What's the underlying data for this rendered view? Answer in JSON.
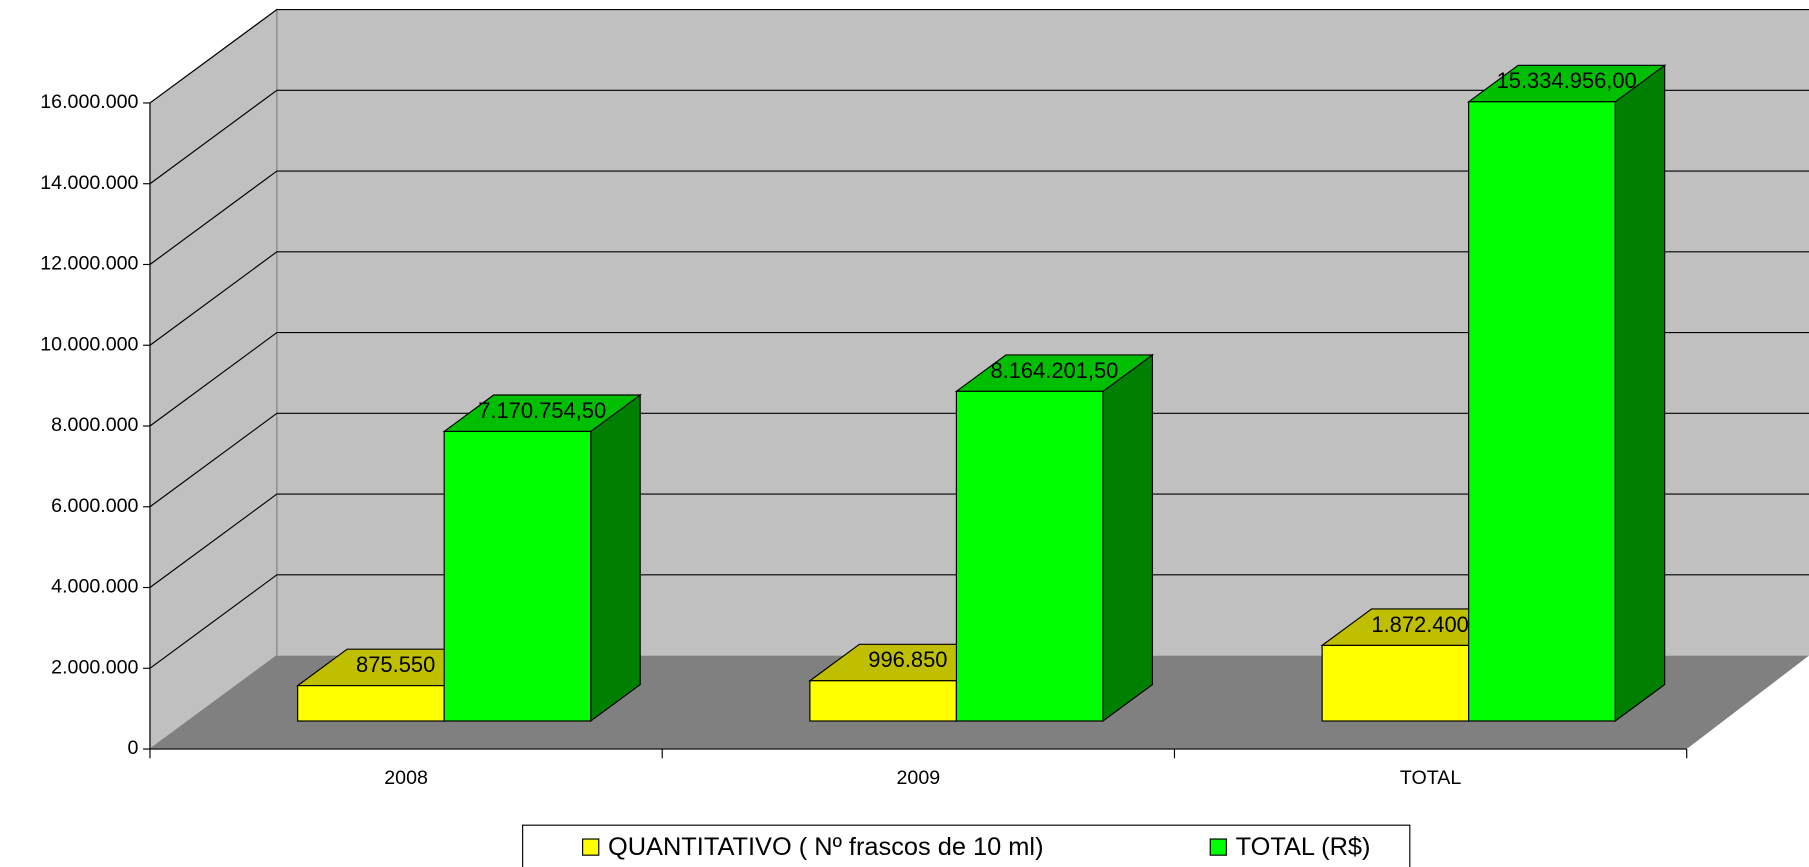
{
  "chart_data": {
    "type": "bar3d",
    "categories": [
      "2008",
      "2009",
      "TOTAL"
    ],
    "series": [
      {
        "name": "QUANTITATIVO ( Nº frascos de 10 ml)",
        "color": "#ffff00",
        "values": [
          875550,
          996850,
          1872400
        ],
        "value_labels": [
          "875.550",
          "996.850",
          "1.872.400"
        ]
      },
      {
        "name": "TOTAL (R$)",
        "color": "#00ff00",
        "values": [
          7170754.5,
          8164201.5,
          15334956
        ],
        "value_labels": [
          "7.170.754,50",
          "8.164.201,50",
          "15.334.956,00"
        ]
      }
    ],
    "ylim": [
      0,
      16000000
    ],
    "yticks": [
      0,
      {
        "value": 2000000,
        "label": "2.000.000"
      },
      {
        "value": 4000000,
        "label": "4.000.000"
      },
      {
        "value": 6000000,
        "label": "6.000.000"
      },
      {
        "value": 8000000,
        "label": "8.000.000"
      },
      {
        "value": 10000000,
        "label": "10.000.000"
      },
      {
        "value": 12000000,
        "label": "12.000.000"
      },
      {
        "value": 14000000,
        "label": "14.000.000"
      },
      {
        "value": 16000000,
        "label": "16.000.000"
      }
    ],
    "grid": true,
    "legend": "bottom"
  }
}
